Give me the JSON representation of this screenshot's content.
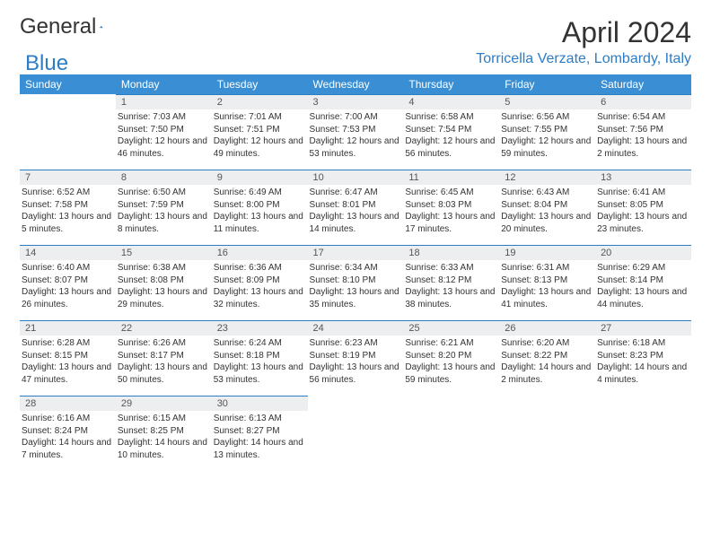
{
  "brand": {
    "word1": "General",
    "word2": "Blue"
  },
  "title": "April 2024",
  "location": "Torricella Verzate, Lombardy, Italy",
  "colors": {
    "header_bg": "#3a8fd4",
    "accent": "#2d7dc4",
    "daynum_bg": "#eceeef",
    "page_bg": "#ffffff",
    "text": "#333333"
  },
  "weekdays": [
    "Sunday",
    "Monday",
    "Tuesday",
    "Wednesday",
    "Thursday",
    "Friday",
    "Saturday"
  ],
  "weeks": [
    [
      null,
      {
        "n": "1",
        "sr": "7:03 AM",
        "ss": "7:50 PM",
        "dl": "12 hours and 46 minutes."
      },
      {
        "n": "2",
        "sr": "7:01 AM",
        "ss": "7:51 PM",
        "dl": "12 hours and 49 minutes."
      },
      {
        "n": "3",
        "sr": "7:00 AM",
        "ss": "7:53 PM",
        "dl": "12 hours and 53 minutes."
      },
      {
        "n": "4",
        "sr": "6:58 AM",
        "ss": "7:54 PM",
        "dl": "12 hours and 56 minutes."
      },
      {
        "n": "5",
        "sr": "6:56 AM",
        "ss": "7:55 PM",
        "dl": "12 hours and 59 minutes."
      },
      {
        "n": "6",
        "sr": "6:54 AM",
        "ss": "7:56 PM",
        "dl": "13 hours and 2 minutes."
      }
    ],
    [
      {
        "n": "7",
        "sr": "6:52 AM",
        "ss": "7:58 PM",
        "dl": "13 hours and 5 minutes."
      },
      {
        "n": "8",
        "sr": "6:50 AM",
        "ss": "7:59 PM",
        "dl": "13 hours and 8 minutes."
      },
      {
        "n": "9",
        "sr": "6:49 AM",
        "ss": "8:00 PM",
        "dl": "13 hours and 11 minutes."
      },
      {
        "n": "10",
        "sr": "6:47 AM",
        "ss": "8:01 PM",
        "dl": "13 hours and 14 minutes."
      },
      {
        "n": "11",
        "sr": "6:45 AM",
        "ss": "8:03 PM",
        "dl": "13 hours and 17 minutes."
      },
      {
        "n": "12",
        "sr": "6:43 AM",
        "ss": "8:04 PM",
        "dl": "13 hours and 20 minutes."
      },
      {
        "n": "13",
        "sr": "6:41 AM",
        "ss": "8:05 PM",
        "dl": "13 hours and 23 minutes."
      }
    ],
    [
      {
        "n": "14",
        "sr": "6:40 AM",
        "ss": "8:07 PM",
        "dl": "13 hours and 26 minutes."
      },
      {
        "n": "15",
        "sr": "6:38 AM",
        "ss": "8:08 PM",
        "dl": "13 hours and 29 minutes."
      },
      {
        "n": "16",
        "sr": "6:36 AM",
        "ss": "8:09 PM",
        "dl": "13 hours and 32 minutes."
      },
      {
        "n": "17",
        "sr": "6:34 AM",
        "ss": "8:10 PM",
        "dl": "13 hours and 35 minutes."
      },
      {
        "n": "18",
        "sr": "6:33 AM",
        "ss": "8:12 PM",
        "dl": "13 hours and 38 minutes."
      },
      {
        "n": "19",
        "sr": "6:31 AM",
        "ss": "8:13 PM",
        "dl": "13 hours and 41 minutes."
      },
      {
        "n": "20",
        "sr": "6:29 AM",
        "ss": "8:14 PM",
        "dl": "13 hours and 44 minutes."
      }
    ],
    [
      {
        "n": "21",
        "sr": "6:28 AM",
        "ss": "8:15 PM",
        "dl": "13 hours and 47 minutes."
      },
      {
        "n": "22",
        "sr": "6:26 AM",
        "ss": "8:17 PM",
        "dl": "13 hours and 50 minutes."
      },
      {
        "n": "23",
        "sr": "6:24 AM",
        "ss": "8:18 PM",
        "dl": "13 hours and 53 minutes."
      },
      {
        "n": "24",
        "sr": "6:23 AM",
        "ss": "8:19 PM",
        "dl": "13 hours and 56 minutes."
      },
      {
        "n": "25",
        "sr": "6:21 AM",
        "ss": "8:20 PM",
        "dl": "13 hours and 59 minutes."
      },
      {
        "n": "26",
        "sr": "6:20 AM",
        "ss": "8:22 PM",
        "dl": "14 hours and 2 minutes."
      },
      {
        "n": "27",
        "sr": "6:18 AM",
        "ss": "8:23 PM",
        "dl": "14 hours and 4 minutes."
      }
    ],
    [
      {
        "n": "28",
        "sr": "6:16 AM",
        "ss": "8:24 PM",
        "dl": "14 hours and 7 minutes."
      },
      {
        "n": "29",
        "sr": "6:15 AM",
        "ss": "8:25 PM",
        "dl": "14 hours and 10 minutes."
      },
      {
        "n": "30",
        "sr": "6:13 AM",
        "ss": "8:27 PM",
        "dl": "14 hours and 13 minutes."
      },
      null,
      null,
      null,
      null
    ]
  ],
  "labels": {
    "sunrise": "Sunrise:",
    "sunset": "Sunset:",
    "daylight": "Daylight:"
  }
}
